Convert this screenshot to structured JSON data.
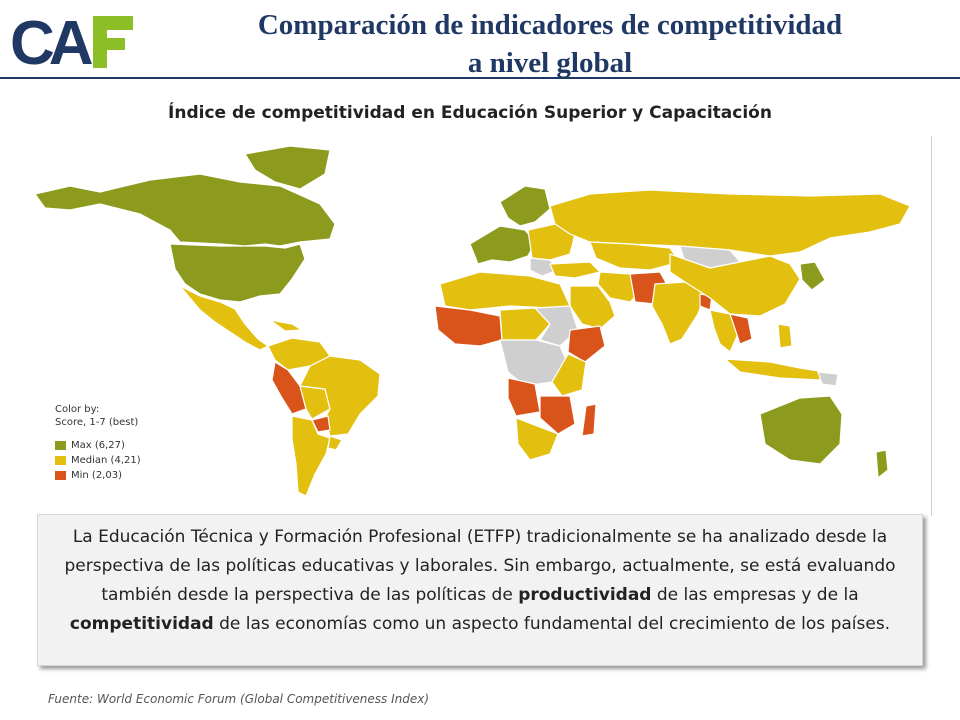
{
  "logo": {
    "text": "CAF"
  },
  "title": {
    "line1": "Comparación de indicadores  de competitividad",
    "line2": "a nivel global"
  },
  "map": {
    "title": "Índice de competitividad en Educación Superior y Capacitación",
    "legend": {
      "heading1": "Color by:",
      "heading2": "Score, 1-7 (best)",
      "items": [
        {
          "label": "Max (6,27)",
          "color": "#8c9a1e"
        },
        {
          "label": "Median (4,21)",
          "color": "#e3bf10"
        },
        {
          "label": "Min (2,03)",
          "color": "#d9541a"
        }
      ]
    },
    "colors": {
      "no_data": "#cfcfcf",
      "border": "#ffffff"
    }
  },
  "body": {
    "part1": "La Educación Técnica y Formación Profesional (ETFP) tradicionalmente se ha analizado desde la perspectiva de las políticas educativas y laborales. Sin embargo, actualmente, se está evaluando también desde la perspectiva de las políticas de ",
    "bold1": "productividad",
    "part2": " de las empresas y de la ",
    "bold2": "competitividad",
    "part3": " de las economías como un aspecto fundamental del crecimiento de los países."
  },
  "source": "Fuente: World Economic Forum (Global Competitiveness Index)"
}
